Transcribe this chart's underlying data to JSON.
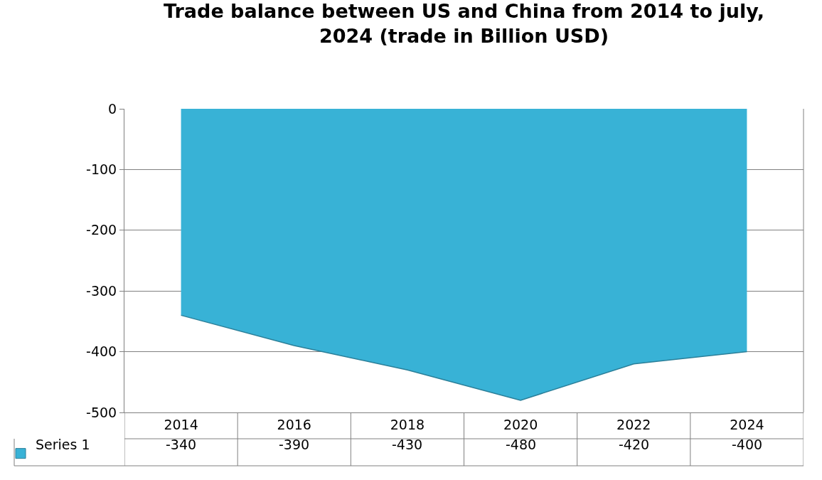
{
  "chart_data": {
    "type": "area",
    "title": "Trade balance between US and China from 2014 to july, 2024 (trade in Billion USD)",
    "categories": [
      "2014",
      "2016",
      "2018",
      "2020",
      "2022",
      "2024"
    ],
    "series": [
      {
        "name": "Series 1",
        "color": "#38b2d6",
        "values": [
          -340,
          -390,
          -430,
          -480,
          -420,
          -400
        ]
      }
    ],
    "ylim": [
      -500,
      0
    ],
    "yticks": [
      0,
      -100,
      -200,
      -300,
      -400,
      -500
    ],
    "grid": "y",
    "data_labels": true
  }
}
